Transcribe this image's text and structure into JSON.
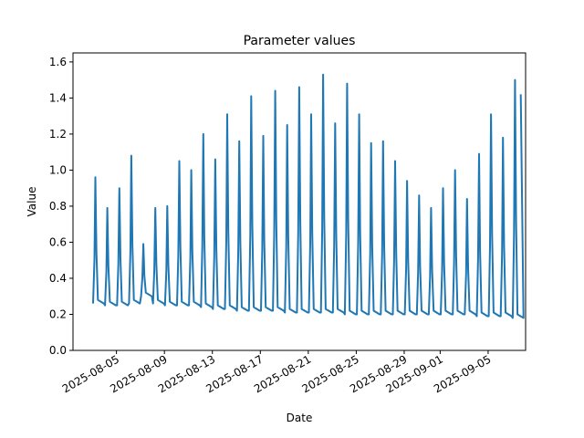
{
  "chart_data": {
    "type": "line",
    "title": "Parameter values",
    "xlabel": "Date",
    "ylabel": "Value",
    "ylim": [
      0,
      1.65
    ],
    "xlim": [
      "2025-08-01T09:00",
      "2025-09-08T03:00"
    ],
    "yticks": [
      0.0,
      0.2,
      0.4,
      0.6,
      0.8,
      1.0,
      1.2,
      1.4,
      1.6
    ],
    "ytick_labels": [
      "0.0",
      "0.2",
      "0.4",
      "0.6",
      "0.8",
      "1.0",
      "1.2",
      "1.4",
      "1.6"
    ],
    "xticks": [
      "2025-08-05",
      "2025-08-09",
      "2025-08-13",
      "2025-08-17",
      "2025-08-21",
      "2025-08-25",
      "2025-08-29",
      "2025-09-01",
      "2025-09-05"
    ],
    "grid": false,
    "legend": "none",
    "series_color": "#1f77b4",
    "daily_cycles": [
      {
        "date": "2025-08-03",
        "peak": 0.96,
        "low": 0.26
      },
      {
        "date": "2025-08-04",
        "peak": 0.79,
        "low": 0.25
      },
      {
        "date": "2025-08-05",
        "peak": 0.9,
        "low": 0.25
      },
      {
        "date": "2025-08-06",
        "peak": 1.08,
        "low": 0.26
      },
      {
        "date": "2025-08-07",
        "peak": 0.59,
        "low": 0.3
      },
      {
        "date": "2025-08-08",
        "peak": 0.79,
        "low": 0.26
      },
      {
        "date": "2025-08-09",
        "peak": 0.8,
        "low": 0.25
      },
      {
        "date": "2025-08-10",
        "peak": 1.05,
        "low": 0.25
      },
      {
        "date": "2025-08-11",
        "peak": 1.0,
        "low": 0.25
      },
      {
        "date": "2025-08-12",
        "peak": 1.2,
        "low": 0.24
      },
      {
        "date": "2025-08-13",
        "peak": 1.06,
        "low": 0.23
      },
      {
        "date": "2025-08-14",
        "peak": 1.31,
        "low": 0.23
      },
      {
        "date": "2025-08-15",
        "peak": 1.16,
        "low": 0.22
      },
      {
        "date": "2025-08-16",
        "peak": 1.41,
        "low": 0.22
      },
      {
        "date": "2025-08-17",
        "peak": 1.19,
        "low": 0.22
      },
      {
        "date": "2025-08-18",
        "peak": 1.44,
        "low": 0.22
      },
      {
        "date": "2025-08-19",
        "peak": 1.25,
        "low": 0.21
      },
      {
        "date": "2025-08-20",
        "peak": 1.46,
        "low": 0.21
      },
      {
        "date": "2025-08-21",
        "peak": 1.31,
        "low": 0.21
      },
      {
        "date": "2025-08-22",
        "peak": 1.53,
        "low": 0.21
      },
      {
        "date": "2025-08-23",
        "peak": 1.26,
        "low": 0.21
      },
      {
        "date": "2025-08-24",
        "peak": 1.48,
        "low": 0.2
      },
      {
        "date": "2025-08-25",
        "peak": 1.31,
        "low": 0.2
      },
      {
        "date": "2025-08-26",
        "peak": 1.15,
        "low": 0.2
      },
      {
        "date": "2025-08-27",
        "peak": 1.16,
        "low": 0.2
      },
      {
        "date": "2025-08-28",
        "peak": 1.05,
        "low": 0.2
      },
      {
        "date": "2025-08-29",
        "peak": 0.94,
        "low": 0.2
      },
      {
        "date": "2025-08-30",
        "peak": 0.86,
        "low": 0.2
      },
      {
        "date": "2025-08-31",
        "peak": 0.79,
        "low": 0.2
      },
      {
        "date": "2025-09-01",
        "peak": 0.9,
        "low": 0.2
      },
      {
        "date": "2025-09-02",
        "peak": 1.0,
        "low": 0.2
      },
      {
        "date": "2025-09-03",
        "peak": 0.84,
        "low": 0.2
      },
      {
        "date": "2025-09-04",
        "peak": 1.09,
        "low": 0.19
      },
      {
        "date": "2025-09-05",
        "peak": 1.31,
        "low": 0.19
      },
      {
        "date": "2025-09-06",
        "peak": 1.18,
        "low": 0.19
      },
      {
        "date": "2025-09-07",
        "peak": 1.5,
        "low": 0.18
      }
    ]
  }
}
